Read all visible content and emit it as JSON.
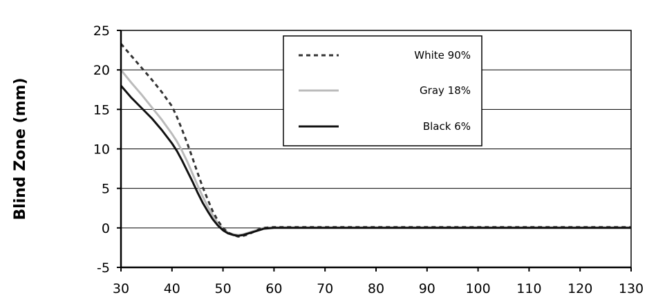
{
  "chart_data": {
    "type": "line",
    "title": "",
    "xlabel": "",
    "ylabel": "Blind Zone (mm)",
    "xlim": [
      30,
      130
    ],
    "ylim": [
      -5,
      25
    ],
    "xticks": [
      30,
      40,
      50,
      60,
      70,
      80,
      90,
      100,
      110,
      120,
      130
    ],
    "yticks": [
      -5,
      0,
      5,
      10,
      15,
      20,
      25
    ],
    "grid": "horizontal",
    "legend_position": "top-right",
    "series": [
      {
        "name": "White 90%",
        "style": "dashed",
        "color": "#333333",
        "x": [
          30,
          32,
          34,
          36,
          38,
          40,
          41,
          42,
          43,
          44,
          45,
          46,
          47,
          48,
          49,
          50,
          51,
          52,
          53,
          54,
          55,
          56,
          57,
          58,
          60,
          70,
          80,
          90,
          100,
          110,
          120,
          130
        ],
        "y": [
          23.3,
          21.8,
          20.3,
          18.8,
          17.2,
          15.4,
          14.0,
          12.4,
          10.7,
          8.9,
          7.0,
          5.2,
          3.6,
          2.1,
          0.9,
          0.0,
          -0.6,
          -0.9,
          -1.1,
          -1.0,
          -0.8,
          -0.5,
          -0.2,
          0.0,
          0.1,
          0.1,
          0.1,
          0.1,
          0.1,
          0.1,
          0.1,
          0.1
        ]
      },
      {
        "name": "Gray 18%",
        "style": "solid",
        "color": "#bbbbbb",
        "x": [
          30,
          32,
          34,
          36,
          38,
          40,
          41,
          42,
          43,
          44,
          45,
          46,
          47,
          48,
          49,
          50,
          51,
          52,
          53,
          54,
          55,
          56,
          57,
          58,
          60,
          70,
          80,
          90,
          100,
          110,
          120,
          130
        ],
        "y": [
          20.0,
          18.4,
          16.9,
          15.3,
          13.7,
          11.9,
          10.9,
          9.7,
          8.4,
          6.9,
          5.4,
          4.0,
          2.7,
          1.6,
          0.6,
          -0.1,
          -0.6,
          -0.8,
          -0.9,
          -0.8,
          -0.6,
          -0.4,
          -0.2,
          0.0,
          0.05,
          0.05,
          0.05,
          0.05,
          0.05,
          0.05,
          0.05,
          0.05
        ]
      },
      {
        "name": "Black 6%",
        "style": "solid",
        "color": "#111111",
        "x": [
          30,
          32,
          34,
          36,
          38,
          40,
          41,
          42,
          43,
          44,
          45,
          46,
          47,
          48,
          49,
          50,
          51,
          52,
          53,
          54,
          55,
          56,
          57,
          58,
          60,
          70,
          80,
          90,
          100,
          110,
          120,
          130
        ],
        "y": [
          18.0,
          16.5,
          15.2,
          13.9,
          12.4,
          10.7,
          9.7,
          8.5,
          7.2,
          5.9,
          4.5,
          3.2,
          2.1,
          1.1,
          0.3,
          -0.3,
          -0.7,
          -0.9,
          -1.0,
          -0.9,
          -0.7,
          -0.5,
          -0.3,
          -0.1,
          0.0,
          0.0,
          0.0,
          0.0,
          0.0,
          0.0,
          0.0,
          0.0
        ]
      }
    ]
  }
}
